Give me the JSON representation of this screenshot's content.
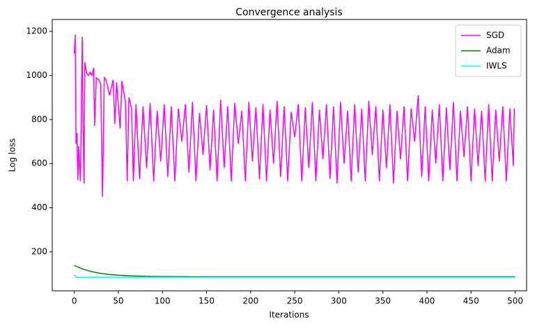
{
  "chart_data": {
    "type": "line",
    "title": "Convergence analysis",
    "x_label": "Iterations",
    "y_label": "Log loss",
    "xlim": [
      -25,
      513
    ],
    "ylim": [
      23,
      1254
    ],
    "xticks": [
      0,
      50,
      100,
      150,
      200,
      250,
      300,
      350,
      400,
      450,
      500
    ],
    "yticks": [
      200,
      400,
      600,
      800,
      1000,
      1200
    ],
    "grid": false,
    "legend": "upper right",
    "series": [
      {
        "name": "SGD",
        "color": "#ff00ff",
        "x": [
          0,
          1,
          2,
          3,
          4,
          5,
          7,
          9,
          10,
          11,
          12,
          14,
          16,
          18,
          20,
          22,
          23,
          25,
          28,
          30,
          32,
          34,
          36,
          40,
          44,
          46,
          48,
          52,
          54,
          58,
          60,
          62,
          65,
          67,
          70,
          74,
          78,
          82,
          86,
          90,
          94,
          98,
          102,
          106,
          110,
          114,
          118,
          122,
          126,
          130,
          134,
          138,
          142,
          146,
          150,
          154,
          158,
          162,
          166,
          170,
          174,
          178,
          182,
          186,
          190,
          194,
          198,
          202,
          206,
          210,
          214,
          218,
          222,
          226,
          230,
          234,
          238,
          242,
          246,
          250,
          254,
          258,
          262,
          266,
          270,
          274,
          278,
          282,
          286,
          290,
          294,
          298,
          302,
          306,
          310,
          314,
          318,
          322,
          326,
          330,
          334,
          338,
          342,
          346,
          350,
          354,
          358,
          362,
          366,
          370,
          374,
          378,
          382,
          386,
          390,
          394,
          398,
          402,
          406,
          410,
          414,
          418,
          422,
          426,
          430,
          434,
          438,
          442,
          446,
          450,
          454,
          458,
          462,
          466,
          470,
          474,
          478,
          482,
          486,
          490,
          494,
          498,
          499
        ],
        "values": [
          1100,
          1185,
          690,
          740,
          525,
          680,
          520,
          1175,
          780,
          510,
          1060,
          1010,
          1000,
          1015,
          1000,
          1035,
          770,
          990,
          980,
          960,
          450,
          990,
          980,
          910,
          980,
          780,
          970,
          760,
          975,
          880,
          520,
          900,
          850,
          520,
          870,
          530,
          860,
          580,
          875,
          520,
          840,
          610,
          870,
          540,
          860,
          520,
          850,
          700,
          870,
          560,
          880,
          520,
          830,
          640,
          865,
          570,
          845,
          520,
          890,
          580,
          860,
          520,
          875,
          690,
          840,
          520,
          880,
          610,
          855,
          530,
          870,
          520,
          845,
          600,
          885,
          540,
          860,
          520,
          835,
          720,
          870,
          520,
          855,
          580,
          880,
          520,
          845,
          620,
          870,
          530,
          860,
          510,
          880,
          600,
          840,
          520,
          870,
          560,
          850,
          520,
          885,
          640,
          860,
          520,
          845,
          580,
          870,
          510,
          840,
          620,
          860,
          520,
          850,
          700,
          910,
          540,
          860,
          520,
          845,
          600,
          870,
          520,
          855,
          570,
          880,
          520,
          840,
          630,
          860,
          520,
          850,
          590,
          840,
          520,
          870,
          520,
          845,
          610,
          860,
          520,
          850,
          590,
          850
        ]
      },
      {
        "name": "Adam",
        "color": "#008000",
        "x": [
          0,
          10,
          20,
          30,
          40,
          50,
          60,
          70,
          80,
          90,
          100,
          150,
          200,
          250,
          300,
          350,
          400,
          450,
          500
        ],
        "values": [
          138,
          121,
          110,
          102,
          97,
          94,
          92,
          90,
          89,
          88,
          88,
          87,
          87,
          87,
          87,
          87,
          87,
          87,
          87
        ]
      },
      {
        "name": "IWLS",
        "color": "#00ffff",
        "x": [
          0,
          2,
          500
        ],
        "values": [
          97,
          85,
          85
        ]
      }
    ]
  }
}
